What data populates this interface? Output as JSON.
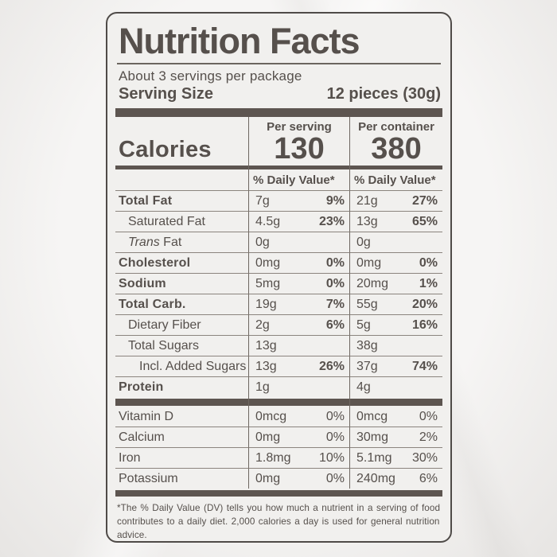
{
  "label": {
    "title": "Nutrition Facts",
    "servings_line": "About 3 servings per package",
    "serving_size_label": "Serving Size",
    "serving_size_value": "12 pieces (30g)",
    "calories": {
      "label": "Calories",
      "per_serving_header": "Per serving",
      "per_container_header": "Per container",
      "per_serving_value": "130",
      "per_container_value": "380",
      "daily_value_header": "% Daily Value*"
    },
    "nutrients": [
      {
        "name": "Total Fat",
        "serving": {
          "amount": "7g",
          "dv": "9%"
        },
        "container": {
          "amount": "21g",
          "dv": "27%"
        }
      },
      {
        "name": "Saturated Fat",
        "serving": {
          "amount": "4.5g",
          "dv": "23%"
        },
        "container": {
          "amount": "13g",
          "dv": "65%"
        }
      },
      {
        "name_italic": "Trans",
        "name": " Fat",
        "serving": {
          "amount": "0g",
          "dv": ""
        },
        "container": {
          "amount": "0g",
          "dv": ""
        }
      },
      {
        "name": "Cholesterol",
        "serving": {
          "amount": "0mg",
          "dv": "0%"
        },
        "container": {
          "amount": "0mg",
          "dv": "0%"
        }
      },
      {
        "name": "Sodium",
        "serving": {
          "amount": "5mg",
          "dv": "0%"
        },
        "container": {
          "amount": "20mg",
          "dv": "1%"
        }
      },
      {
        "name": "Total Carb.",
        "serving": {
          "amount": "19g",
          "dv": "7%"
        },
        "container": {
          "amount": "55g",
          "dv": "20%"
        }
      },
      {
        "name": "Dietary Fiber",
        "serving": {
          "amount": "2g",
          "dv": "6%"
        },
        "container": {
          "amount": "5g",
          "dv": "16%"
        }
      },
      {
        "name": "Total Sugars",
        "serving": {
          "amount": "13g",
          "dv": ""
        },
        "container": {
          "amount": "38g",
          "dv": ""
        }
      },
      {
        "name": "Incl. Added Sugars",
        "serving": {
          "amount": "13g",
          "dv": "26%"
        },
        "container": {
          "amount": "37g",
          "dv": "74%"
        }
      },
      {
        "name": "Protein",
        "serving": {
          "amount": "1g",
          "dv": ""
        },
        "container": {
          "amount": "4g",
          "dv": ""
        }
      }
    ],
    "micronutrients": [
      {
        "name": "Vitamin D",
        "serving": {
          "amount": "0mcg",
          "dv": "0%"
        },
        "container": {
          "amount": "0mcg",
          "dv": "0%"
        }
      },
      {
        "name": "Calcium",
        "serving": {
          "amount": "0mg",
          "dv": "0%"
        },
        "container": {
          "amount": "30mg",
          "dv": "2%"
        }
      },
      {
        "name": "Iron",
        "serving": {
          "amount": "1.8mg",
          "dv": "10%"
        },
        "container": {
          "amount": "5.1mg",
          "dv": "30%"
        }
      },
      {
        "name": "Potassium",
        "serving": {
          "amount": "0mg",
          "dv": "0%"
        },
        "container": {
          "amount": "240mg",
          "dv": "6%"
        }
      }
    ],
    "footnote": "*The % Daily Value (DV) tells you how much a nutrient in a serving of food contributes to a daily diet. 2,000 calories a day is used for general nutrition advice."
  },
  "colors": {
    "text": "#56504c",
    "bars": "#5d5550",
    "label_background": "#f1f0ee",
    "page_background": "#f0efed"
  }
}
